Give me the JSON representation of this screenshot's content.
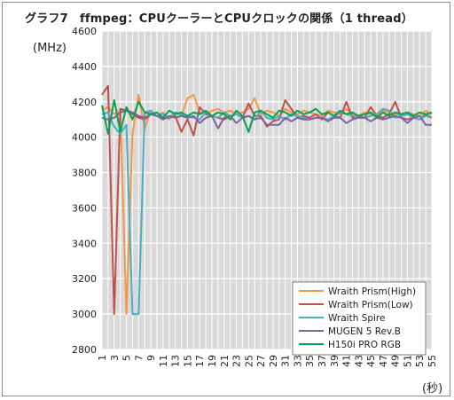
{
  "chart_data": {
    "type": "line",
    "title": "グラフ7　ffmpeg：CPUクーラーとCPUクロックの関係（1 thread）",
    "ylabel": "(MHz)",
    "xlabel": "(秒)",
    "ylim": [
      2800,
      4600
    ],
    "yticks": [
      2800,
      3000,
      3200,
      3400,
      3600,
      3800,
      4000,
      4200,
      4400,
      4600
    ],
    "xticks": [
      1,
      3,
      5,
      7,
      9,
      11,
      13,
      15,
      17,
      19,
      21,
      23,
      25,
      27,
      29,
      31,
      33,
      35,
      37,
      39,
      41,
      43,
      45,
      47,
      49,
      51,
      53,
      55
    ],
    "grid": true,
    "legend_position": "bottom-right",
    "x": [
      1,
      2,
      3,
      4,
      5,
      6,
      7,
      8,
      9,
      10,
      11,
      12,
      13,
      14,
      15,
      16,
      17,
      18,
      19,
      20,
      21,
      22,
      23,
      24,
      25,
      26,
      27,
      28,
      29,
      30,
      31,
      32,
      33,
      34,
      35,
      36,
      37,
      38,
      39,
      40,
      41,
      42,
      43,
      44,
      45,
      46,
      47,
      48,
      49,
      50,
      51,
      52,
      53,
      54,
      55
    ],
    "series": [
      {
        "name": "Wraith Prism(High)",
        "color": "#f79646",
        "values": [
          4150,
          4170,
          4130,
          4150,
          3000,
          4020,
          4240,
          4050,
          4150,
          4120,
          4140,
          4100,
          4140,
          4120,
          4220,
          4240,
          4140,
          4130,
          4150,
          4160,
          4140,
          4150,
          4130,
          4140,
          4160,
          4220,
          4130,
          4150,
          4140,
          4120,
          4160,
          4140,
          4130,
          4150,
          4140,
          4130,
          4120,
          4150,
          4140,
          4130,
          4160,
          4130,
          4120,
          4140,
          4130,
          4120,
          4150,
          4140,
          4130,
          4130,
          4140,
          4130,
          4120,
          4150,
          4130
        ]
      },
      {
        "name": "Wraith Prism(Low)",
        "color": "#c0504d",
        "values": [
          4240,
          4290,
          3000,
          4160,
          4150,
          4130,
          4110,
          4100,
          4130,
          4120,
          4110,
          4110,
          4120,
          4030,
          4100,
          4010,
          4170,
          4130,
          4120,
          4110,
          4100,
          4120,
          4130,
          4110,
          4190,
          4120,
          4120,
          4060,
          4090,
          4100,
          4210,
          4160,
          4110,
          4120,
          4110,
          4130,
          4100,
          4140,
          4120,
          4110,
          4200,
          4110,
          4120,
          4110,
          4170,
          4120,
          4110,
          4130,
          4200,
          4110,
          4100,
          4110,
          4100,
          4130,
          4110
        ]
      },
      {
        "name": "Wraith Spire",
        "color": "#4bacc6",
        "values": [
          4130,
          4140,
          4060,
          4020,
          4070,
          3000,
          3000,
          4140,
          4150,
          4120,
          4130,
          4110,
          4140,
          4130,
          4120,
          4110,
          4100,
          4140,
          4120,
          4110,
          4140,
          4120,
          4130,
          4110,
          4120,
          4100,
          4150,
          4110,
          4100,
          4120,
          4100,
          4130,
          4120,
          4110,
          4100,
          4110,
          4110,
          4100,
          4120,
          4140,
          4130,
          4120,
          4110,
          4110,
          4120,
          4130,
          4160,
          4150,
          4110,
          4120,
          4130,
          4110,
          4100,
          4120,
          4110
        ]
      },
      {
        "name": "MUGEN 5 Rev.B",
        "color": "#8064a2",
        "values": [
          4110,
          4100,
          4110,
          4140,
          4150,
          4140,
          4120,
          4110,
          4130,
          4120,
          4100,
          4120,
          4110,
          4120,
          4110,
          4120,
          4080,
          4110,
          4120,
          4050,
          4110,
          4120,
          4080,
          4110,
          4120,
          4100,
          4110,
          4070,
          4070,
          4070,
          4110,
          4090,
          4110,
          4100,
          4100,
          4110,
          4110,
          4090,
          4110,
          4110,
          4080,
          4100,
          4110,
          4110,
          4090,
          4110,
          4100,
          4110,
          4120,
          4110,
          4080,
          4110,
          4120,
          4070,
          4070
        ]
      },
      {
        "name": "H150i PRO RGB",
        "color": "#00a650",
        "values": [
          4180,
          4020,
          4210,
          4030,
          4170,
          4100,
          4200,
          4140,
          4130,
          4140,
          4110,
          4150,
          4130,
          4140,
          4120,
          4140,
          4130,
          4150,
          4120,
          4140,
          4130,
          4100,
          4150,
          4120,
          4030,
          4140,
          4150,
          4130,
          4110,
          4150,
          4140,
          4120,
          4150,
          4130,
          4140,
          4160,
          4130,
          4140,
          4120,
          4150,
          4130,
          4140,
          4120,
          4130,
          4140,
          4110,
          4140,
          4120,
          4140,
          4130,
          4140,
          4120,
          4140,
          4130,
          4140
        ]
      }
    ]
  }
}
